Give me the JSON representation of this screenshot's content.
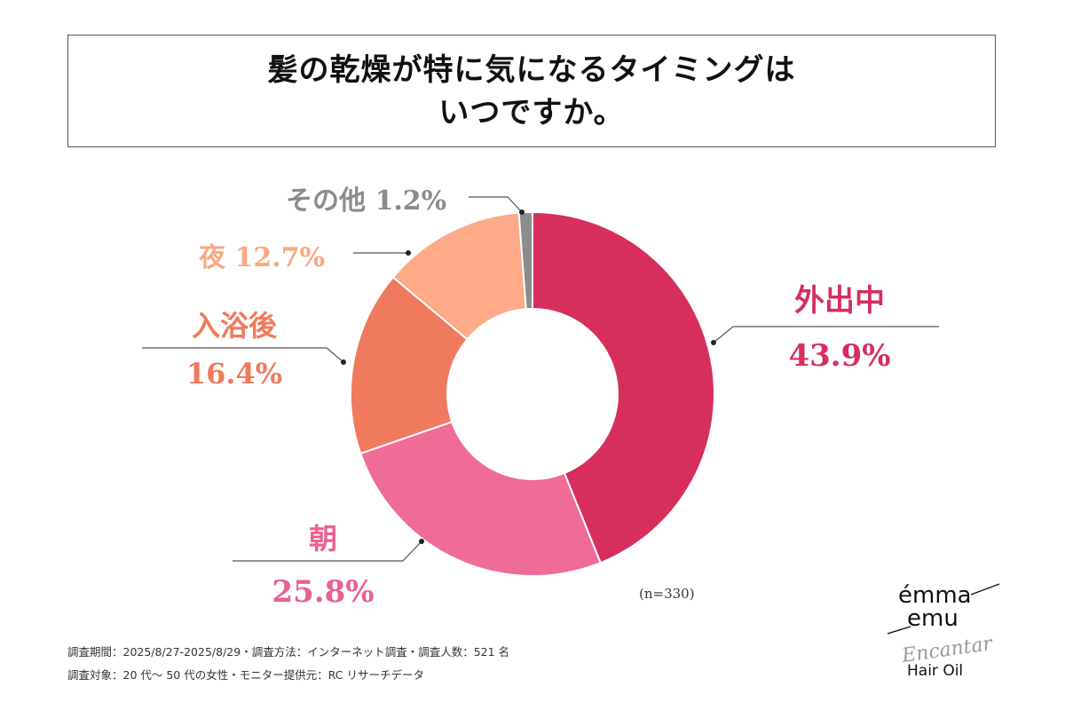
{
  "header": {
    "title_line1": "髪の乾燥が特に気になるタイミングは",
    "title_line2": "いつですか。"
  },
  "chart_data": {
    "type": "pie",
    "donut": true,
    "title": "髪の乾燥が特に気になるタイミングはいつですか。",
    "unit": "%",
    "start": "top, clockwise",
    "slices": [
      {
        "label": "外出中",
        "value": 43.9,
        "value_text": "43.9%",
        "color": "#D62E5D",
        "label_color": "#D62E5D"
      },
      {
        "label": "朝",
        "value": 25.8,
        "value_text": "25.8%",
        "color": "#EF6C97",
        "label_color": "#E9618F"
      },
      {
        "label": "入浴後",
        "value": 16.4,
        "value_text": "16.4%",
        "color": "#F07A5E",
        "label_color": "#EE7A5C"
      },
      {
        "label": "夜",
        "value": 12.7,
        "value_text": "12.7%",
        "color": "#FDAA88",
        "label_color": "#F9A884"
      },
      {
        "label": "その他",
        "value": 1.2,
        "value_text": "1.2%",
        "color": "#8C8C8C",
        "label_color": "#8C8C8C"
      }
    ],
    "sample_size": "(n=330)"
  },
  "footer": {
    "line1": "調査期間：2025/8/27-2025/8/29・調査方法：インターネット調査・調査人数：521 名",
    "line2": "調査対象：20 代～ 50 代の女性・モニター提供元：RC リサーチデータ"
  },
  "logo": {
    "line1": "émma",
    "line2": "emu",
    "script": "Encantar",
    "product": "Hair Oil"
  }
}
